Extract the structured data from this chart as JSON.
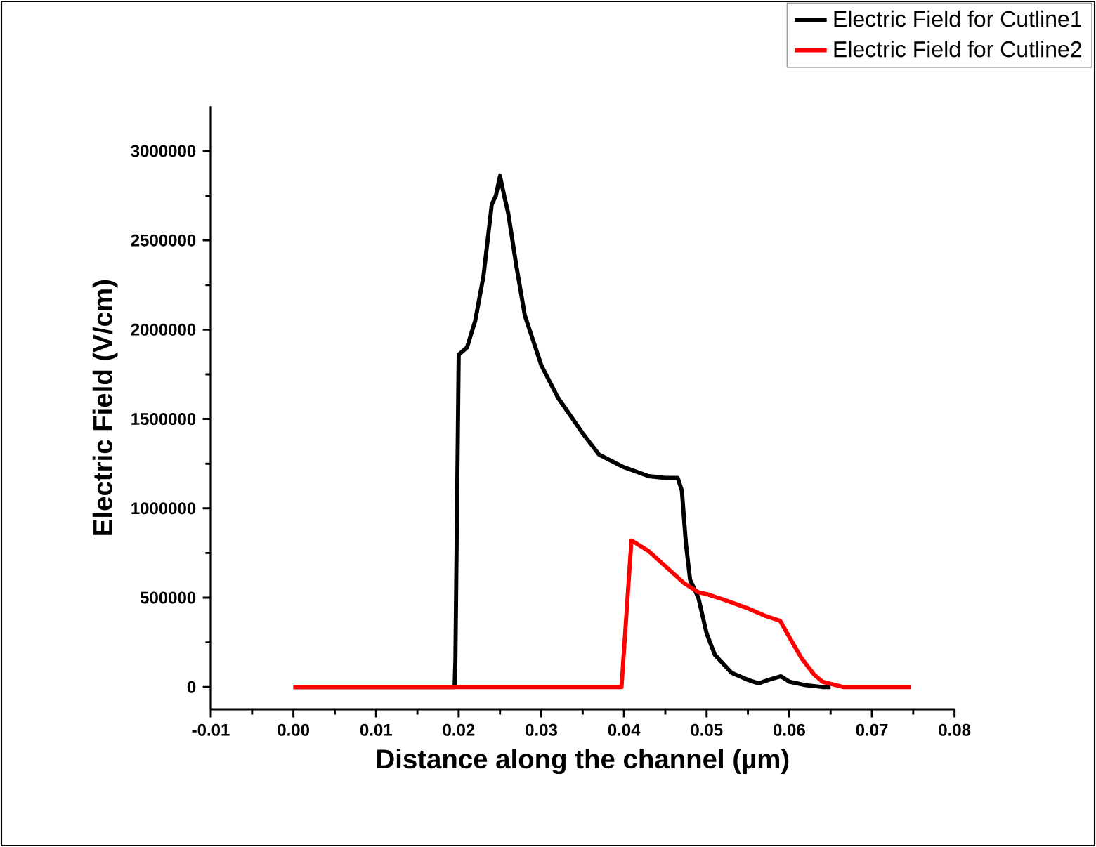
{
  "chart_data": {
    "type": "line",
    "xlabel": "Distance along the channel (µm)",
    "ylabel": "Electric Field (V/cm)",
    "xlim": [
      -0.01,
      0.08
    ],
    "xticks": [
      -0.01,
      {
        "value": 0,
        "label": "0.00"
      },
      0.01,
      0.02,
      0.03,
      0.04,
      0.05,
      0.06,
      0.07,
      0.08
    ],
    "ylim": [
      -125000,
      3250000
    ],
    "yticks": [
      0,
      500000,
      1000000,
      1500000,
      2000000,
      2500000,
      3000000
    ],
    "grid": false,
    "legend": "top right",
    "marker": "none",
    "line_style": "solid",
    "series": [
      {
        "name": "Electric Field for Cutline1",
        "color": "#000000",
        "x": [
          0.0,
          0.0195,
          0.0196,
          0.02,
          0.021,
          0.022,
          0.023,
          0.024,
          0.0245,
          0.025,
          0.0255,
          0.026,
          0.027,
          0.028,
          0.03,
          0.032,
          0.035,
          0.037,
          0.04,
          0.043,
          0.045,
          0.0465,
          0.047,
          0.0475,
          0.048,
          0.049,
          0.05,
          0.051,
          0.053,
          0.055,
          0.0563,
          0.0575,
          0.059,
          0.06,
          0.062,
          0.064,
          0.065
        ],
        "values": [
          0,
          0,
          150000,
          1860000,
          1900000,
          2050000,
          2300000,
          2700000,
          2750000,
          2860000,
          2750000,
          2650000,
          2350000,
          2080000,
          1800000,
          1620000,
          1420000,
          1300000,
          1230000,
          1180000,
          1170000,
          1170000,
          1100000,
          800000,
          600000,
          500000,
          300000,
          180000,
          80000,
          40000,
          20000,
          40000,
          60000,
          30000,
          10000,
          0,
          0
        ]
      },
      {
        "name": "Electric Field for Cutline2",
        "color": "#ff0000",
        "x": [
          0.0,
          0.0397,
          0.0409,
          0.043,
          0.0473,
          0.049,
          0.05,
          0.052,
          0.055,
          0.057,
          0.0589,
          0.06,
          0.0615,
          0.063,
          0.064,
          0.0665,
          0.0747
        ],
        "values": [
          0,
          0,
          820000,
          760000,
          580000,
          530000,
          520000,
          490000,
          440000,
          400000,
          370000,
          280000,
          160000,
          70000,
          30000,
          0,
          0
        ]
      }
    ]
  }
}
